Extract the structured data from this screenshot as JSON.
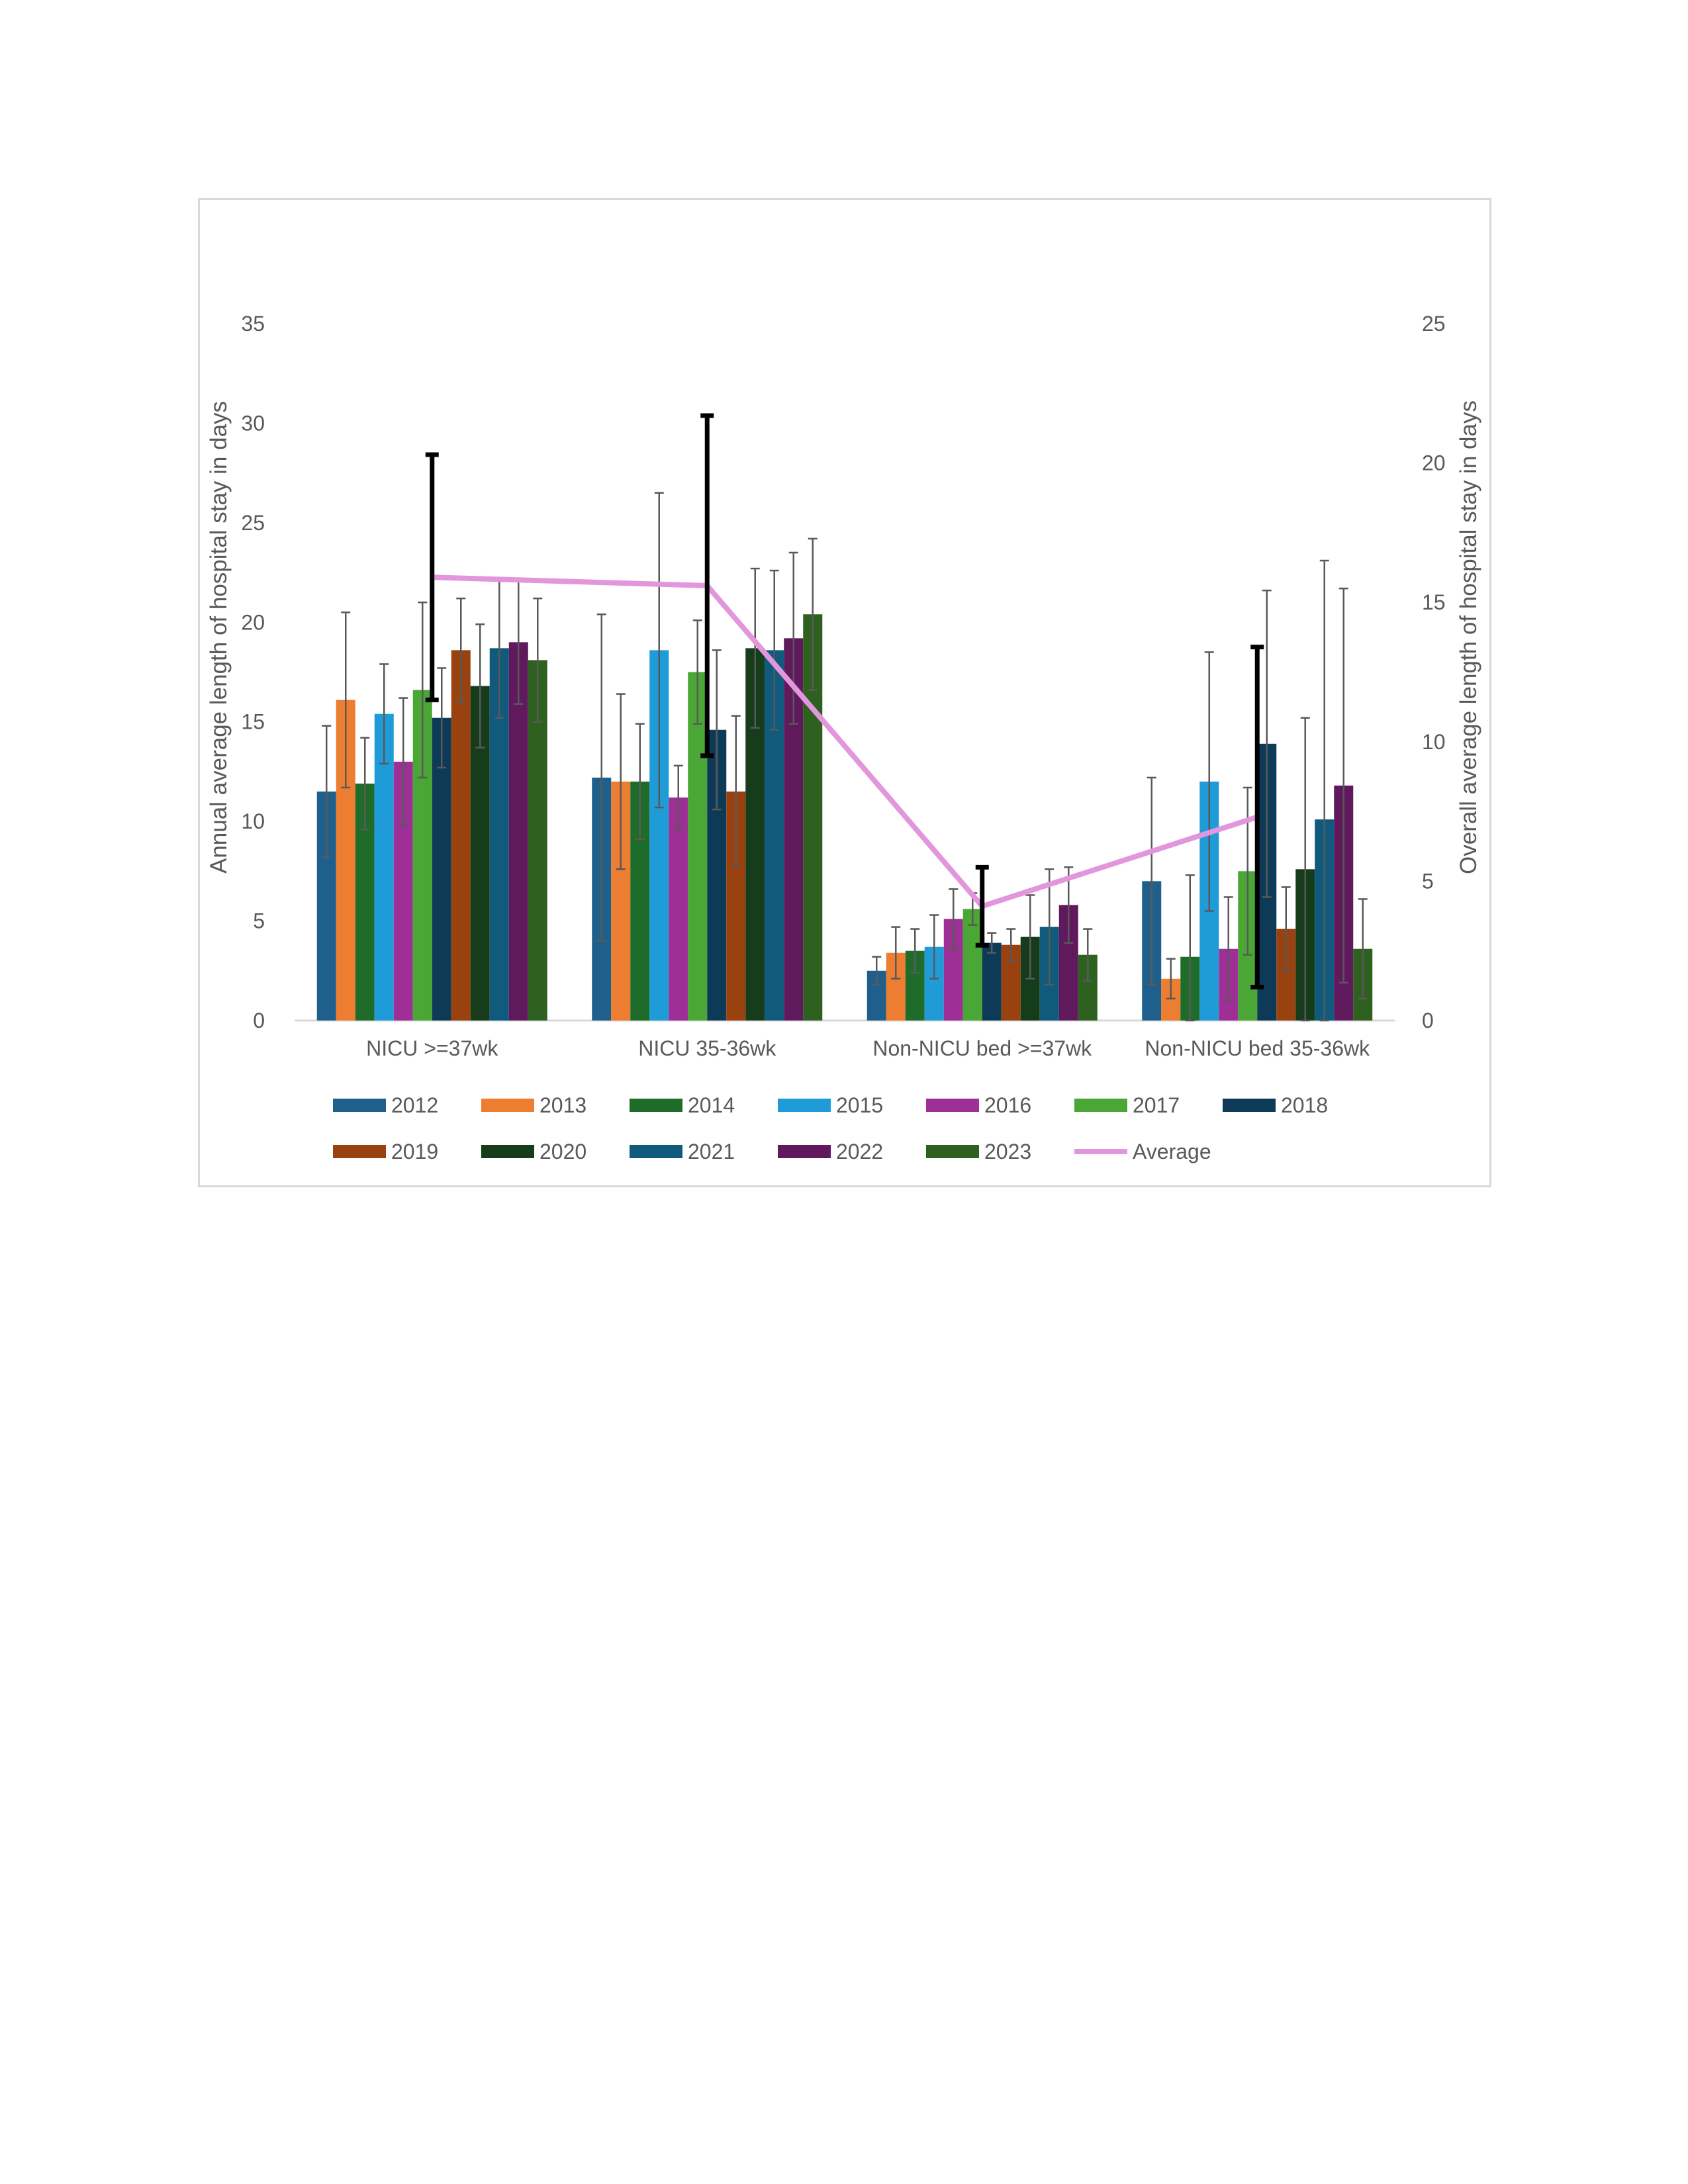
{
  "chart_data": {
    "type": "bar",
    "title": "",
    "ylabel": "Annual average length of hospital stay in days",
    "y2label": "Overall average length of hospital stay in days",
    "ylim": [
      0,
      35
    ],
    "y2lim": [
      0,
      25
    ],
    "yticks": [
      "0",
      "5",
      "10",
      "15",
      "20",
      "25",
      "30",
      "35"
    ],
    "y2ticks": [
      "0",
      "5",
      "10",
      "15",
      "20",
      "25"
    ],
    "categories": [
      "NICU >=37wk",
      "NICU 35-36wk",
      "Non-NICU bed >=37wk",
      "Non-NICU bed 35-36wk"
    ],
    "grid": false,
    "legend_position": "bottom",
    "series": [
      {
        "name": "2012",
        "color": "#1f5f8b",
        "values": [
          11.5,
          12.2,
          2.5,
          7.0
        ],
        "err": [
          3.3,
          8.2,
          0.7,
          5.2
        ]
      },
      {
        "name": "2013",
        "color": "#ed7d31",
        "values": [
          16.1,
          12.0,
          3.4,
          2.1
        ],
        "err": [
          4.4,
          4.4,
          1.3,
          1.0
        ]
      },
      {
        "name": "2014",
        "color": "#1e6b2a",
        "values": [
          11.9,
          12.0,
          3.5,
          3.2
        ],
        "err": [
          2.3,
          2.9,
          1.1,
          4.1
        ]
      },
      {
        "name": "2015",
        "color": "#1f9bd7",
        "values": [
          15.4,
          18.6,
          3.7,
          12.0
        ],
        "err": [
          2.5,
          7.9,
          1.6,
          6.5
        ]
      },
      {
        "name": "2016",
        "color": "#9e2f96",
        "values": [
          13.0,
          11.2,
          5.1,
          3.6
        ],
        "err": [
          3.2,
          1.6,
          1.5,
          2.6
        ]
      },
      {
        "name": "2017",
        "color": "#4aa635",
        "values": [
          16.6,
          17.5,
          5.6,
          7.5
        ],
        "err": [
          4.4,
          2.6,
          0.8,
          4.2
        ]
      },
      {
        "name": "2018",
        "color": "#0d3a56",
        "values": [
          15.2,
          14.6,
          3.9,
          13.9
        ],
        "err": [
          2.5,
          4.0,
          0.5,
          7.7
        ]
      },
      {
        "name": "2019",
        "color": "#99420f",
        "values": [
          18.6,
          11.5,
          3.8,
          4.6
        ],
        "err": [
          2.6,
          3.8,
          0.8,
          2.1
        ]
      },
      {
        "name": "2020",
        "color": "#153d1b",
        "values": [
          16.8,
          18.7,
          4.2,
          7.6
        ],
        "err": [
          3.1,
          4.0,
          2.1,
          7.6
        ]
      },
      {
        "name": "2021",
        "color": "#0f5a7d",
        "values": [
          18.7,
          18.6,
          4.7,
          10.1
        ],
        "err": [
          3.5,
          4.0,
          2.9,
          13.0
        ]
      },
      {
        "name": "2022",
        "color": "#60195d",
        "values": [
          19.0,
          19.2,
          5.8,
          11.8
        ],
        "err": [
          3.1,
          4.3,
          1.9,
          9.9
        ]
      },
      {
        "name": "2023",
        "color": "#2e6020",
        "values": [
          18.1,
          20.4,
          3.3,
          3.6
        ],
        "err": [
          3.1,
          3.8,
          1.3,
          2.5
        ]
      }
    ],
    "line": {
      "name": "Average",
      "color": "#e296dc",
      "axis": "secondary",
      "values": [
        15.9,
        15.6,
        4.1,
        7.3
      ],
      "err": [
        4.4,
        6.1,
        1.4,
        6.1
      ]
    }
  }
}
